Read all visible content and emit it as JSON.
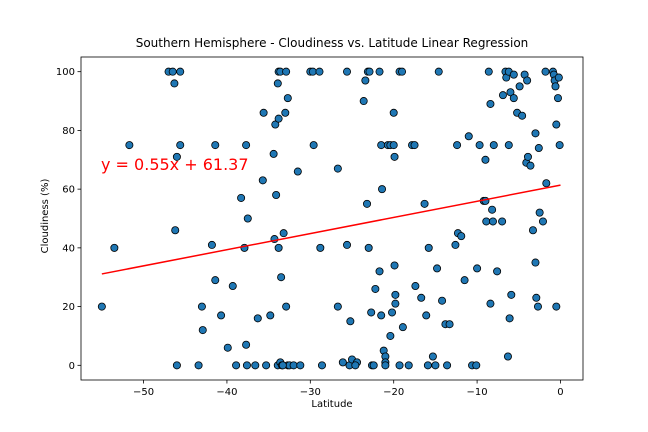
{
  "chart_data": {
    "type": "scatter",
    "title": "Southern Hemisphere - Cloudiness vs. Latitude Linear Regression",
    "xlabel": "Latitude",
    "ylabel": "Cloudiness (%)",
    "xlim": [
      -57.5,
      2.7
    ],
    "ylim": [
      -5,
      105
    ],
    "xticks": [
      -50,
      -40,
      -30,
      -20,
      -10,
      0
    ],
    "yticks": [
      0,
      20,
      40,
      60,
      80,
      100
    ],
    "grid": false,
    "point_color": "#1f77b4",
    "point_edge_color": "#000000",
    "regression": {
      "slope": 0.55,
      "intercept": 61.37,
      "x_range": [
        -55,
        0
      ],
      "color": "#ff0000",
      "equation": "y = 0.55x + 61.37"
    },
    "points": [
      [
        -55,
        20
      ],
      [
        -53.5,
        40
      ],
      [
        -51.7,
        75
      ],
      [
        -47,
        100
      ],
      [
        -46.5,
        100
      ],
      [
        -45.6,
        100
      ],
      [
        -46.3,
        96
      ],
      [
        -46.2,
        46
      ],
      [
        -46.0,
        71
      ],
      [
        -45.6,
        75
      ],
      [
        -46.0,
        0
      ],
      [
        -43.4,
        0
      ],
      [
        -43.0,
        20
      ],
      [
        -42.9,
        12
      ],
      [
        -41.8,
        41
      ],
      [
        -41.4,
        75
      ],
      [
        -41.4,
        29
      ],
      [
        -40.7,
        17
      ],
      [
        -39.9,
        6
      ],
      [
        -39.3,
        27
      ],
      [
        -38.9,
        0
      ],
      [
        -38.3,
        57
      ],
      [
        -37.9,
        40
      ],
      [
        -37.7,
        75
      ],
      [
        -37.5,
        50
      ],
      [
        -37.7,
        7
      ],
      [
        -37.6,
        0
      ],
      [
        -36.6,
        0
      ],
      [
        -36.3,
        16
      ],
      [
        -35.7,
        63
      ],
      [
        -35.6,
        86
      ],
      [
        -35.3,
        0
      ],
      [
        -34.8,
        17
      ],
      [
        -34.4,
        72
      ],
      [
        -34.3,
        43
      ],
      [
        -34.1,
        58
      ],
      [
        -34.2,
        82
      ],
      [
        -33.8,
        84
      ],
      [
        -33.8,
        40
      ],
      [
        -33.9,
        96
      ],
      [
        -33.8,
        100
      ],
      [
        -33.6,
        100
      ],
      [
        -33.5,
        30
      ],
      [
        -33.9,
        0
      ],
      [
        -33.6,
        1
      ],
      [
        -33.4,
        0
      ],
      [
        -33.2,
        45
      ],
      [
        -33.0,
        86
      ],
      [
        -32.9,
        20
      ],
      [
        -32.7,
        91
      ],
      [
        -32.9,
        100
      ],
      [
        -32.7,
        0
      ],
      [
        -32.5,
        0
      ],
      [
        -32.0,
        0
      ],
      [
        -31.2,
        0
      ],
      [
        -31.5,
        66
      ],
      [
        -30.0,
        100
      ],
      [
        -29.7,
        100
      ],
      [
        -29.6,
        75
      ],
      [
        -28.9,
        100
      ],
      [
        -28.8,
        40
      ],
      [
        -28.6,
        0
      ],
      [
        -26.7,
        67
      ],
      [
        -26.7,
        20
      ],
      [
        -26.1,
        1
      ],
      [
        -25.6,
        100
      ],
      [
        -25.6,
        41
      ],
      [
        -25.3,
        0
      ],
      [
        -25.0,
        2
      ],
      [
        -25.2,
        15
      ],
      [
        -24.4,
        1
      ],
      [
        -23.6,
        90
      ],
      [
        -23.4,
        97
      ],
      [
        -23.1,
        100
      ],
      [
        -22.9,
        100
      ],
      [
        -23.2,
        55
      ],
      [
        -23.0,
        40
      ],
      [
        -22.7,
        18
      ],
      [
        -22.6,
        0
      ],
      [
        -22.4,
        0
      ],
      [
        -22.2,
        26
      ],
      [
        -21.7,
        100
      ],
      [
        -21.7,
        32
      ],
      [
        -21.5,
        75
      ],
      [
        -21.5,
        17
      ],
      [
        -21.4,
        60
      ],
      [
        -21.2,
        5
      ],
      [
        -21.0,
        3
      ],
      [
        -21.0,
        1
      ],
      [
        -21.0,
        0
      ],
      [
        -20.7,
        75
      ],
      [
        -20.4,
        75
      ],
      [
        -20.4,
        10
      ],
      [
        -20.2,
        18
      ],
      [
        -20.0,
        86
      ],
      [
        -20.0,
        75
      ],
      [
        -19.9,
        71
      ],
      [
        -19.9,
        34
      ],
      [
        -19.8,
        24
      ],
      [
        -19.8,
        21
      ],
      [
        -19.3,
        100
      ],
      [
        -19.0,
        100
      ],
      [
        -19.3,
        0
      ],
      [
        -18.9,
        13
      ],
      [
        -18.2,
        0
      ],
      [
        -17.8,
        75
      ],
      [
        -17.5,
        75
      ],
      [
        -17.4,
        27
      ],
      [
        -16.7,
        23
      ],
      [
        -16.3,
        55
      ],
      [
        -16.1,
        17
      ],
      [
        -15.8,
        40
      ],
      [
        -15.9,
        0
      ],
      [
        -15.3,
        3
      ],
      [
        -15.0,
        0
      ],
      [
        -14.8,
        33
      ],
      [
        -14.6,
        100
      ],
      [
        -14.2,
        22
      ],
      [
        -13.8,
        14
      ],
      [
        -13.6,
        0
      ],
      [
        -13.3,
        14
      ],
      [
        -12.4,
        75
      ],
      [
        -12.6,
        41
      ],
      [
        -12.3,
        45
      ],
      [
        -11.9,
        44
      ],
      [
        -11.5,
        29
      ],
      [
        -11.0,
        78
      ],
      [
        -10.6,
        0
      ],
      [
        -10.1,
        0
      ],
      [
        -10.0,
        33
      ],
      [
        -9.7,
        75
      ],
      [
        -9.2,
        56
      ],
      [
        -9.0,
        70
      ],
      [
        -9.0,
        56
      ],
      [
        -8.9,
        49
      ],
      [
        -8.6,
        100
      ],
      [
        -8.4,
        89
      ],
      [
        -8.4,
        21
      ],
      [
        -8.2,
        53
      ],
      [
        -8.1,
        49
      ],
      [
        -8.0,
        75
      ],
      [
        -7.6,
        32
      ],
      [
        -7.0,
        49
      ],
      [
        -6.9,
        92
      ],
      [
        -6.6,
        100
      ],
      [
        -6.5,
        98
      ],
      [
        -6.2,
        100
      ],
      [
        -6.0,
        93
      ],
      [
        -6.2,
        75
      ],
      [
        -6.1,
        16
      ],
      [
        -5.9,
        24
      ],
      [
        -5.6,
        99
      ],
      [
        -5.6,
        91
      ],
      [
        -5.2,
        86
      ],
      [
        -4.9,
        95
      ],
      [
        -4.6,
        85
      ],
      [
        -4.3,
        99
      ],
      [
        -4.1,
        69
      ],
      [
        -4.0,
        97
      ],
      [
        -3.9,
        71
      ],
      [
        -3.6,
        68
      ],
      [
        -3.3,
        46
      ],
      [
        -3.0,
        79
      ],
      [
        -3.0,
        35
      ],
      [
        -2.9,
        23
      ],
      [
        -2.7,
        20
      ],
      [
        -2.6,
        74
      ],
      [
        -2.5,
        52
      ],
      [
        -2.1,
        49
      ],
      [
        -1.8,
        100
      ],
      [
        -1.7,
        62
      ],
      [
        -0.9,
        100
      ],
      [
        -0.8,
        99
      ],
      [
        -0.7,
        97
      ],
      [
        -0.6,
        95
      ],
      [
        -0.5,
        82
      ],
      [
        -0.5,
        20
      ],
      [
        -0.3,
        91
      ],
      [
        -0.2,
        98
      ],
      [
        -0.1,
        75
      ],
      [
        -6.3,
        3
      ],
      [
        -33.3,
        0
      ],
      [
        -24.6,
        0
      ]
    ]
  }
}
